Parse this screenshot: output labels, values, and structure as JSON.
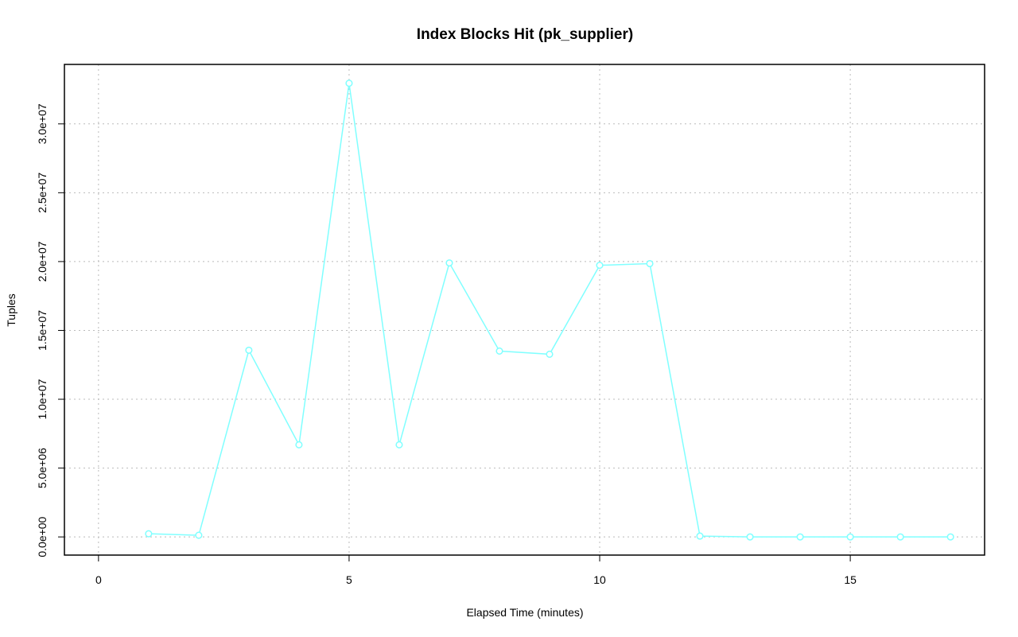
{
  "chart_data": {
    "type": "line",
    "title": "Index Blocks Hit (pk_supplier)",
    "x_label": "Elapsed Time (minutes)",
    "y_label": "Tuples",
    "x": [
      1,
      2,
      3,
      4,
      5,
      6,
      7,
      8,
      9,
      10,
      11,
      12,
      13,
      14,
      15,
      16,
      17
    ],
    "series": [
      {
        "color": "#80ffff",
        "values": [
          230000,
          120000,
          13560000,
          6690000,
          32950000,
          6690000,
          19900000,
          13500000,
          13270000,
          19730000,
          19850000,
          60000,
          0,
          0,
          0,
          0,
          0
        ]
      }
    ],
    "xlim": [
      -0.68,
      17.68
    ],
    "xticks": [
      0,
      5,
      10,
      15
    ],
    "ylim": [
      -1320000,
      34320000
    ],
    "yticks": [
      {
        "value": 0,
        "label": "0.0e+00"
      },
      {
        "value": 5000000,
        "label": "5.0e+06"
      },
      {
        "value": 10000000,
        "label": "1.0e+07"
      },
      {
        "value": 15000000,
        "label": "1.5e+07"
      },
      {
        "value": 20000000,
        "label": "2.0e+07"
      },
      {
        "value": 25000000,
        "label": "2.5e+07"
      },
      {
        "value": 30000000,
        "label": "3.0e+07"
      }
    ],
    "grid": true
  }
}
